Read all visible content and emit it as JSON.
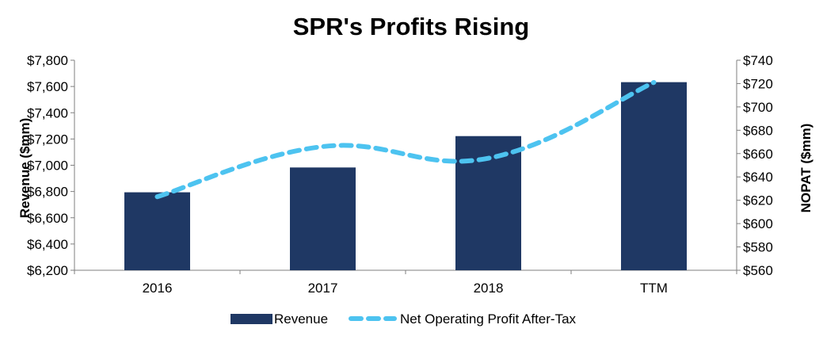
{
  "chart_data": {
    "type": "bar",
    "title": "SPR's Profits Rising",
    "categories": [
      "2016",
      "2017",
      "2018",
      "TTM"
    ],
    "series": [
      {
        "name": "Revenue",
        "type": "bar",
        "axis": "left",
        "color": "#1f3864",
        "values": [
          6794,
          6983,
          7222,
          7633
        ]
      },
      {
        "name": "Net Operating Profit After-Tax",
        "type": "line",
        "axis": "right",
        "color": "#4dc3f0",
        "style": "dashed",
        "values": [
          623,
          666,
          656,
          721
        ]
      }
    ],
    "y_left": {
      "label": "Revenue ($mm)",
      "min": 6200,
      "max": 7800,
      "step": 200,
      "ticks": [
        "$6,200",
        "$6,400",
        "$6,600",
        "$6,800",
        "$7,000",
        "$7,200",
        "$7,400",
        "$7,600",
        "$7,800"
      ]
    },
    "y_right": {
      "label": "NOPAT ($mm)",
      "min": 560,
      "max": 740,
      "step": 20,
      "ticks": [
        "$560",
        "$580",
        "$600",
        "$620",
        "$640",
        "$660",
        "$680",
        "$700",
        "$720",
        "$740"
      ]
    },
    "legend_position": "bottom",
    "grid": false
  }
}
